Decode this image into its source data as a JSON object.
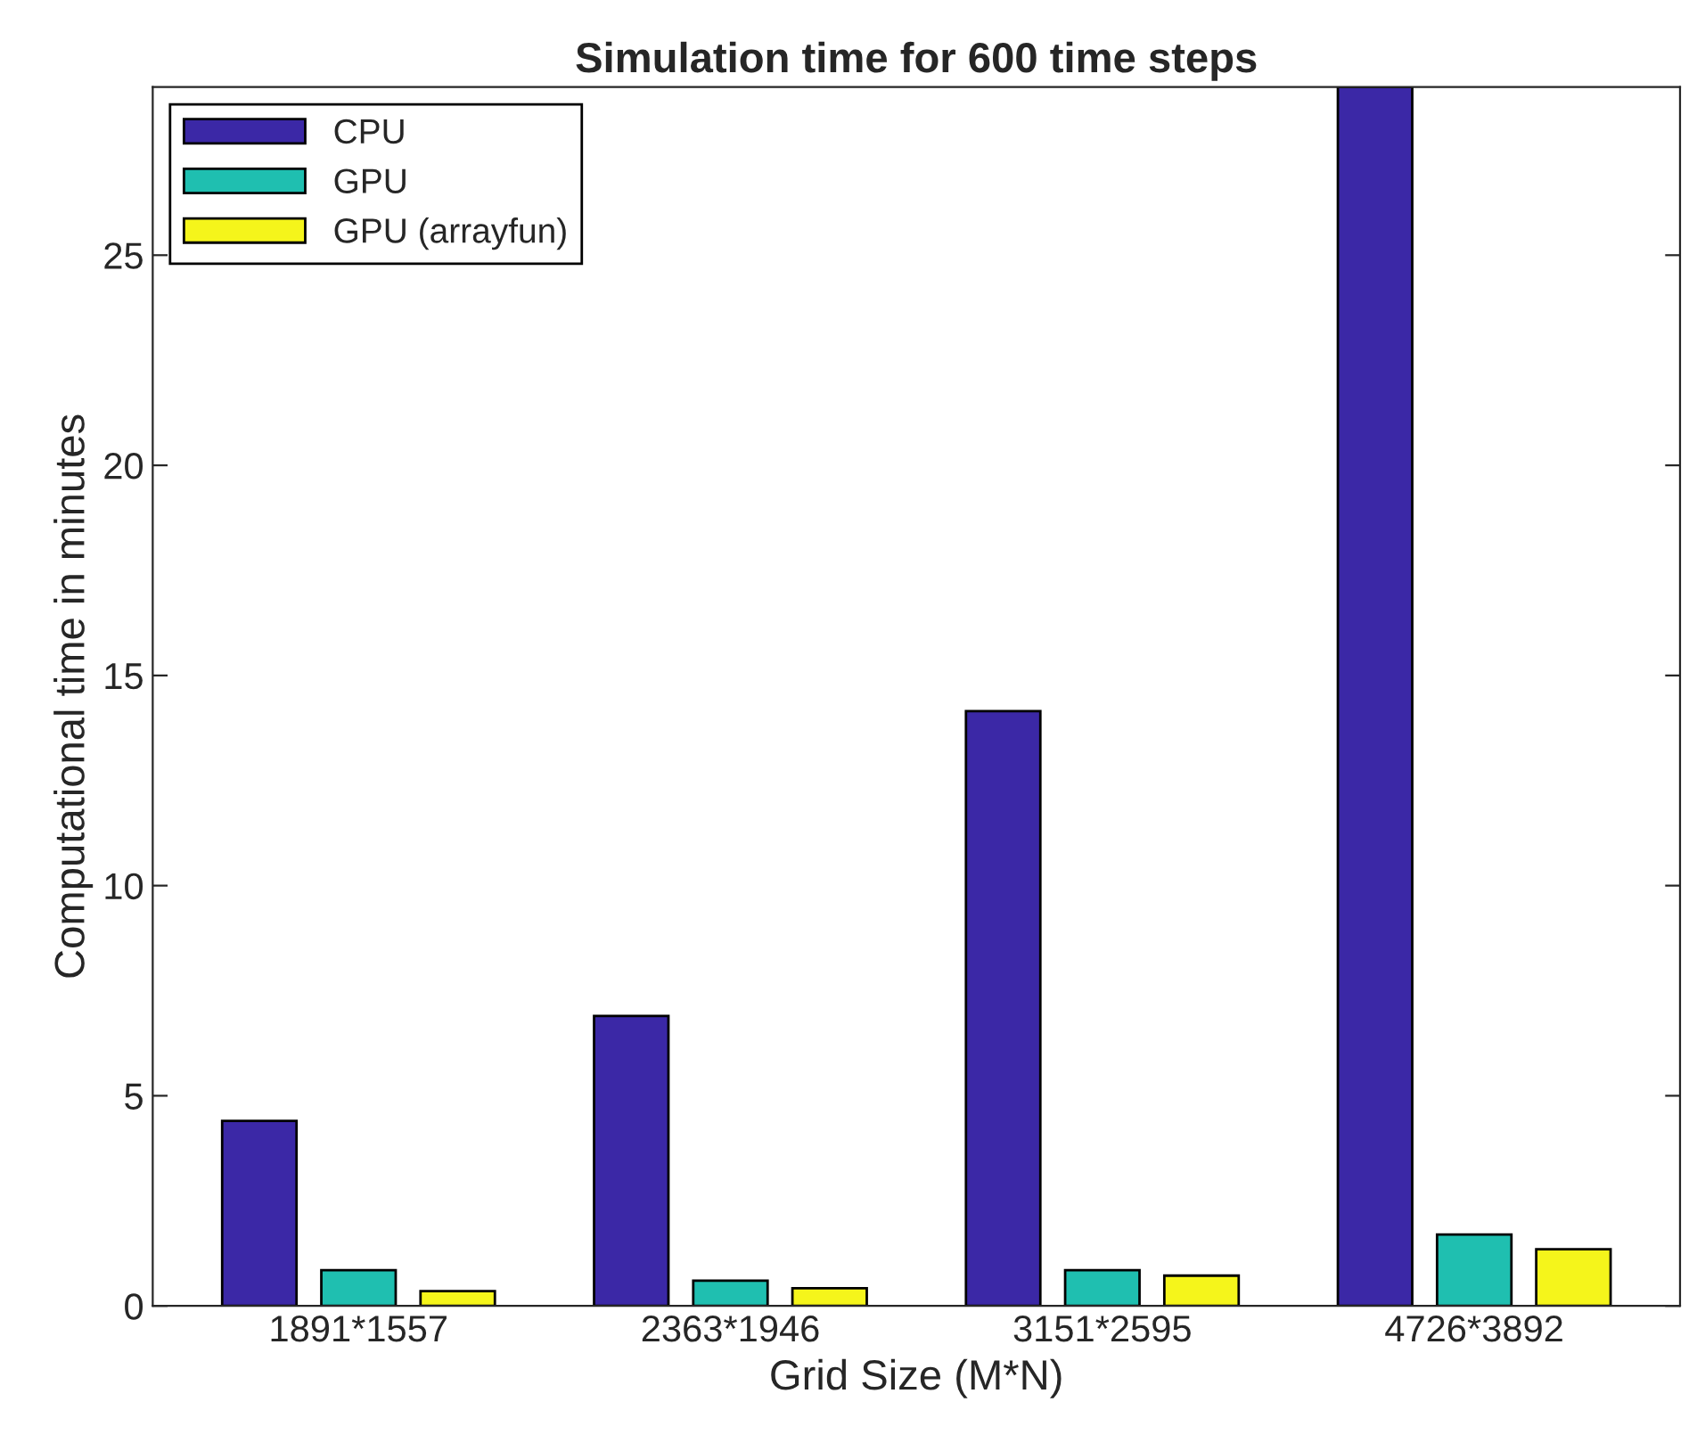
{
  "chart_data": {
    "type": "bar",
    "title": "Simulation time for 600 time steps",
    "xlabel": "Grid Size (M*N)",
    "ylabel": "Computational time in minutes",
    "categories": [
      "1891*1557",
      "2363*1946",
      "3151*2595",
      "4726*3892"
    ],
    "series": [
      {
        "name": "CPU",
        "color": "#3b28a6",
        "values": [
          4.4,
          6.9,
          14.15,
          29
        ]
      },
      {
        "name": "GPU",
        "color": "#1fbfb0",
        "values": [
          0.85,
          0.6,
          0.85,
          1.7
        ]
      },
      {
        "name": "GPU (arrayfun)",
        "color": "#f5f51b",
        "values": [
          0.35,
          0.42,
          0.72,
          1.35
        ]
      }
    ],
    "ylim": [
      0,
      29
    ],
    "yticks": [
      0,
      5,
      10,
      15,
      20,
      25
    ],
    "grid": false,
    "legend": "top left"
  }
}
